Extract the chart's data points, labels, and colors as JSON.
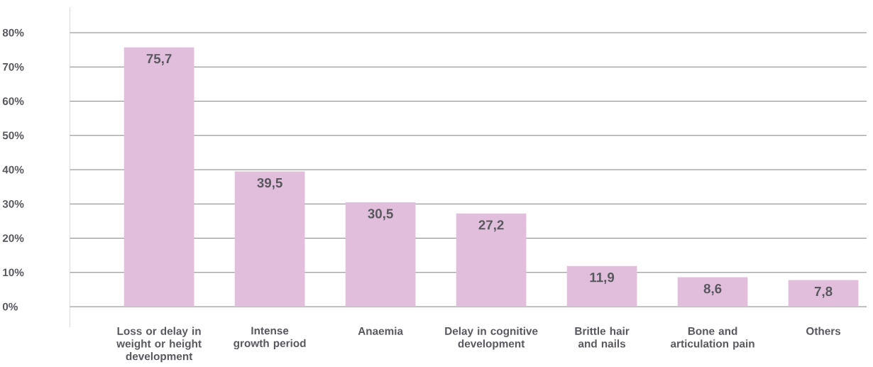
{
  "chart_data": {
    "type": "bar",
    "categories": [
      "Loss or delay in weight or height development",
      "Intense growth period",
      "Anaemia",
      "Delay in cognitive development",
      "Brittle hair and nails",
      "Bone and articulation pain",
      "Others"
    ],
    "values": [
      75.7,
      39.5,
      30.5,
      27.2,
      11.9,
      8.6,
      7.8
    ],
    "value_labels": [
      "75,7",
      "39,5",
      "30,5",
      "27,2",
      "11,9",
      "8,6",
      "7,8"
    ],
    "color": "#e1bfdc",
    "ylim": [
      -6,
      87.5
    ],
    "yticks": [
      {
        "value": 0,
        "label": "0%"
      },
      {
        "value": 10,
        "label": "10%"
      },
      {
        "value": 20,
        "label": "20%"
      },
      {
        "value": 30,
        "label": "30%"
      },
      {
        "value": 40,
        "label": "40%"
      },
      {
        "value": 50,
        "label": "50%"
      },
      {
        "value": 60,
        "label": "60%"
      },
      {
        "value": 70,
        "label": "70%"
      },
      {
        "value": 80,
        "label": "80%"
      }
    ],
    "grid": "y"
  }
}
